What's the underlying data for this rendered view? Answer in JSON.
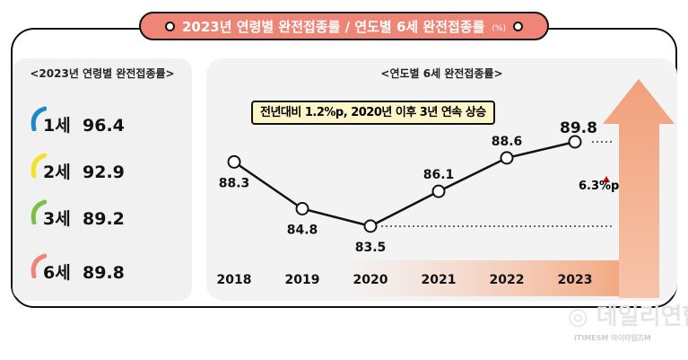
{
  "header": {
    "title": "2023년 연령별 완전접종률 / 연도별 6세 완전접종률",
    "unit": "(%)"
  },
  "left_panel": {
    "title": "<2023년 연령별 완전접종률>",
    "items": [
      {
        "label": "1세",
        "value": "96.4",
        "color": "#1f86c8"
      },
      {
        "label": "2세",
        "value": "92.9",
        "color": "#f3e12a"
      },
      {
        "label": "3세",
        "value": "89.2",
        "color": "#7dbf4a"
      },
      {
        "label": "6세",
        "value": "89.8",
        "color": "#ef8577"
      }
    ]
  },
  "chart_data": {
    "type": "line",
    "title": "<연도별 6세 완전접종률>",
    "categories": [
      "2018",
      "2019",
      "2020",
      "2021",
      "2022",
      "2023"
    ],
    "values": [
      88.3,
      84.8,
      83.5,
      86.1,
      88.6,
      89.8
    ],
    "labels": [
      "88.3",
      "84.8",
      "83.5",
      "86.1",
      "88.6",
      "89.8"
    ],
    "ylim": [
      83,
      90.5
    ],
    "annotation": "전년대비 1.2%p, 2020년 이후 3년 연속 상승",
    "increase_label": "6.3%p"
  },
  "watermark": {
    "name": "데일리연합",
    "sub": "iTIMESM 아이타임즈M"
  }
}
